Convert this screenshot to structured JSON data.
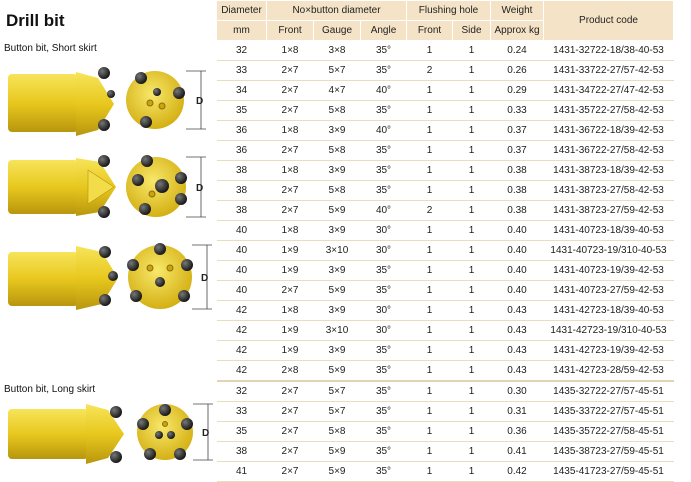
{
  "title": "Drill bit",
  "groups": {
    "short_label": "Button bit, Short skirt",
    "long_label": "Button bit, Long skirt"
  },
  "diameter_marker": "D",
  "headers": {
    "diameter": "Diameter",
    "diameter_unit": "mm",
    "buttons": "No×button diameter",
    "front": "Front",
    "gauge": "Gauge",
    "angle": "Angle",
    "flushing": "Flushing hole",
    "flush_front": "Front",
    "flush_side": "Side",
    "weight": "Weight",
    "weight_unit": "Approx kg",
    "code": "Product code"
  },
  "rows": [
    {
      "d": "32",
      "front": "1×8",
      "gauge": "3×8",
      "angle": "35°",
      "ff": "1",
      "fs": "1",
      "w": "0.24",
      "code": "1431-32722-18/38-40-53"
    },
    {
      "d": "33",
      "front": "2×7",
      "gauge": "5×7",
      "angle": "35°",
      "ff": "2",
      "fs": "1",
      "w": "0.26",
      "code": "1431-33722-27/57-42-53"
    },
    {
      "d": "34",
      "front": "2×7",
      "gauge": "4×7",
      "angle": "40°",
      "ff": "1",
      "fs": "1",
      "w": "0.29",
      "code": "1431-34722-27/47-42-53"
    },
    {
      "d": "35",
      "front": "2×7",
      "gauge": "5×8",
      "angle": "35°",
      "ff": "1",
      "fs": "1",
      "w": "0.33",
      "code": "1431-35722-27/58-42-53"
    },
    {
      "d": "36",
      "front": "1×8",
      "gauge": "3×9",
      "angle": "40°",
      "ff": "1",
      "fs": "1",
      "w": "0.37",
      "code": "1431-36722-18/39-42-53"
    },
    {
      "d": "36",
      "front": "2×7",
      "gauge": "5×8",
      "angle": "35°",
      "ff": "1",
      "fs": "1",
      "w": "0.37",
      "code": "1431-36722-27/58-42-53"
    },
    {
      "d": "38",
      "front": "1×8",
      "gauge": "3×9",
      "angle": "35°",
      "ff": "1",
      "fs": "1",
      "w": "0.38",
      "code": "1431-38723-18/39-42-53"
    },
    {
      "d": "38",
      "front": "2×7",
      "gauge": "5×8",
      "angle": "35°",
      "ff": "1",
      "fs": "1",
      "w": "0.38",
      "code": "1431-38723-27/58-42-53"
    },
    {
      "d": "38",
      "front": "2×7",
      "gauge": "5×9",
      "angle": "40°",
      "ff": "2",
      "fs": "1",
      "w": "0.38",
      "code": "1431-38723-27/59-42-53"
    },
    {
      "d": "40",
      "front": "1×8",
      "gauge": "3×9",
      "angle": "30°",
      "ff": "1",
      "fs": "1",
      "w": "0.40",
      "code": "1431-40723-18/39-40-53"
    },
    {
      "d": "40",
      "front": "1×9",
      "gauge": "3×10",
      "angle": "30°",
      "ff": "1",
      "fs": "1",
      "w": "0.40",
      "code": "1431-40723-19/310-40-53"
    },
    {
      "d": "40",
      "front": "1×9",
      "gauge": "3×9",
      "angle": "35°",
      "ff": "1",
      "fs": "1",
      "w": "0.40",
      "code": "1431-40723-19/39-42-53"
    },
    {
      "d": "40",
      "front": "2×7",
      "gauge": "5×9",
      "angle": "35°",
      "ff": "1",
      "fs": "1",
      "w": "0.40",
      "code": "1431-40723-27/59-42-53"
    },
    {
      "d": "42",
      "front": "1×8",
      "gauge": "3×9",
      "angle": "30°",
      "ff": "1",
      "fs": "1",
      "w": "0.43",
      "code": "1431-42723-18/39-40-53"
    },
    {
      "d": "42",
      "front": "1×9",
      "gauge": "3×10",
      "angle": "30°",
      "ff": "1",
      "fs": "1",
      "w": "0.43",
      "code": "1431-42723-19/310-40-53"
    },
    {
      "d": "42",
      "front": "1×9",
      "gauge": "3×9",
      "angle": "35°",
      "ff": "1",
      "fs": "1",
      "w": "0.43",
      "code": "1431-42723-19/39-42-53"
    },
    {
      "d": "42",
      "front": "2×8",
      "gauge": "5×9",
      "angle": "35°",
      "ff": "1",
      "fs": "1",
      "w": "0.43",
      "code": "1431-42723-28/59-42-53"
    },
    {
      "d": "32",
      "front": "2×7",
      "gauge": "5×7",
      "angle": "35°",
      "ff": "1",
      "fs": "1",
      "w": "0.30",
      "code": "1435-32722-27/57-45-51"
    },
    {
      "d": "33",
      "front": "2×7",
      "gauge": "5×7",
      "angle": "35°",
      "ff": "1",
      "fs": "1",
      "w": "0.31",
      "code": "1435-33722-27/57-45-51"
    },
    {
      "d": "35",
      "front": "2×7",
      "gauge": "5×8",
      "angle": "35°",
      "ff": "1",
      "fs": "1",
      "w": "0.36",
      "code": "1435-35722-27/58-45-51"
    },
    {
      "d": "38",
      "front": "2×7",
      "gauge": "5×9",
      "angle": "35°",
      "ff": "1",
      "fs": "1",
      "w": "0.41",
      "code": "1435-38723-27/59-45-51"
    },
    {
      "d": "41",
      "front": "2×7",
      "gauge": "5×9",
      "angle": "35°",
      "ff": "1",
      "fs": "1",
      "w": "0.42",
      "code": "1435-41723-27/59-45-51"
    }
  ]
}
